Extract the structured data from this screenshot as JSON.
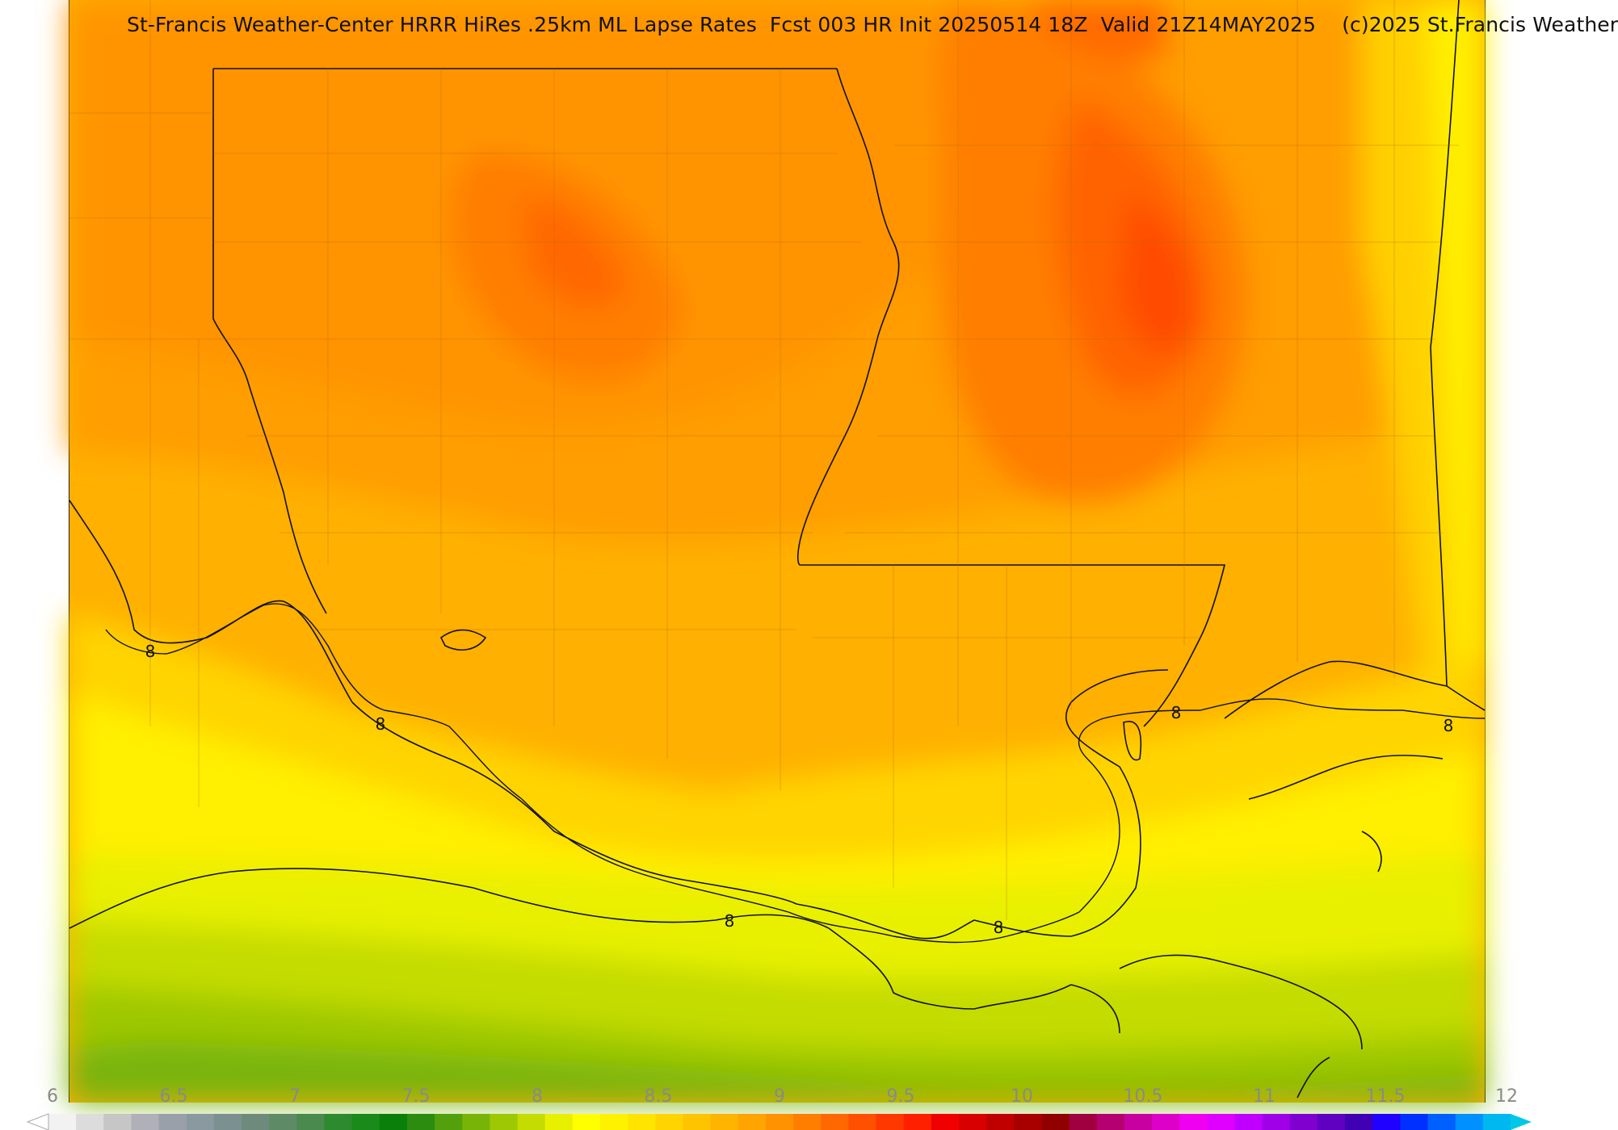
{
  "title": "St-Francis Weather-Center HRRR HiRes .25km ML Lapse Rates  Fcst 003 HR Init 20250514 18Z  Valid 21Z14MAY2025    (c)2025 St.Francis Weather",
  "colorbar": {
    "ticks": [
      "6",
      "6.5",
      "7",
      "7.5",
      "8",
      "8.5",
      "9",
      "9.5",
      "10",
      "10.5",
      "11",
      "11.5",
      "12"
    ],
    "colors": [
      "#f2f2f2",
      "#dcdcdc",
      "#c6c6c6",
      "#b0b0b8",
      "#9aa0aa",
      "#8a98a0",
      "#7b9090",
      "#6e8a7c",
      "#5e8a66",
      "#4a8a4e",
      "#2e8a2e",
      "#1a8a1a",
      "#0a800a",
      "#2c8c10",
      "#52a00c",
      "#78b408",
      "#9ec804",
      "#c4dc02",
      "#e8f000",
      "#ffff00",
      "#fff200",
      "#ffe400",
      "#ffd400",
      "#ffc400",
      "#ffb400",
      "#ffa400",
      "#ff9200",
      "#ff7e00",
      "#ff6800",
      "#ff5000",
      "#ff3800",
      "#ff2000",
      "#f00000",
      "#d80000",
      "#c00000",
      "#a80000",
      "#900000",
      "#a00040",
      "#b40070",
      "#c800a0",
      "#dc00c8",
      "#f000f0",
      "#e000ff",
      "#c000ff",
      "#a000e8",
      "#8000d0",
      "#6000c0",
      "#4000b4",
      "#2000ff",
      "#0030ff",
      "#0060ff",
      "#0090ff",
      "#00b8f0"
    ],
    "low_extend_color": "#ffffff",
    "high_extend_color": "#00c8e6"
  },
  "contour_labels": [
    "8",
    "8",
    "8",
    "8",
    "8",
    "8"
  ]
}
